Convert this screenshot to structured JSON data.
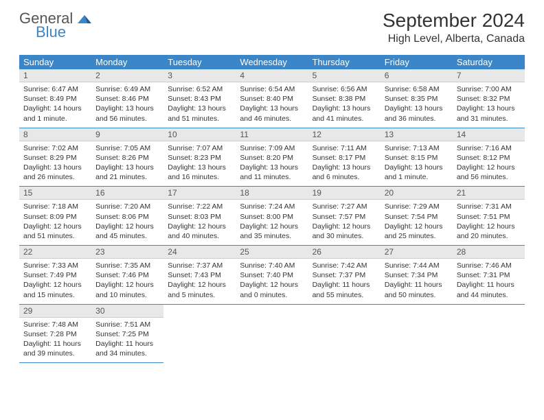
{
  "logo": {
    "word1": "General",
    "word2": "Blue"
  },
  "title": "September 2024",
  "location": "High Level, Alberta, Canada",
  "colors": {
    "header_bg": "#3a86c8",
    "header_text": "#ffffff",
    "daynum_bg": "#e8e8e8",
    "text": "#333333",
    "border": "#3a86c8"
  },
  "dayNames": [
    "Sunday",
    "Monday",
    "Tuesday",
    "Wednesday",
    "Thursday",
    "Friday",
    "Saturday"
  ],
  "weeks": [
    [
      {
        "d": "1",
        "sr": "Sunrise: 6:47 AM",
        "ss": "Sunset: 8:49 PM",
        "dl": "Daylight: 14 hours and 1 minute."
      },
      {
        "d": "2",
        "sr": "Sunrise: 6:49 AM",
        "ss": "Sunset: 8:46 PM",
        "dl": "Daylight: 13 hours and 56 minutes."
      },
      {
        "d": "3",
        "sr": "Sunrise: 6:52 AM",
        "ss": "Sunset: 8:43 PM",
        "dl": "Daylight: 13 hours and 51 minutes."
      },
      {
        "d": "4",
        "sr": "Sunrise: 6:54 AM",
        "ss": "Sunset: 8:40 PM",
        "dl": "Daylight: 13 hours and 46 minutes."
      },
      {
        "d": "5",
        "sr": "Sunrise: 6:56 AM",
        "ss": "Sunset: 8:38 PM",
        "dl": "Daylight: 13 hours and 41 minutes."
      },
      {
        "d": "6",
        "sr": "Sunrise: 6:58 AM",
        "ss": "Sunset: 8:35 PM",
        "dl": "Daylight: 13 hours and 36 minutes."
      },
      {
        "d": "7",
        "sr": "Sunrise: 7:00 AM",
        "ss": "Sunset: 8:32 PM",
        "dl": "Daylight: 13 hours and 31 minutes."
      }
    ],
    [
      {
        "d": "8",
        "sr": "Sunrise: 7:02 AM",
        "ss": "Sunset: 8:29 PM",
        "dl": "Daylight: 13 hours and 26 minutes."
      },
      {
        "d": "9",
        "sr": "Sunrise: 7:05 AM",
        "ss": "Sunset: 8:26 PM",
        "dl": "Daylight: 13 hours and 21 minutes."
      },
      {
        "d": "10",
        "sr": "Sunrise: 7:07 AM",
        "ss": "Sunset: 8:23 PM",
        "dl": "Daylight: 13 hours and 16 minutes."
      },
      {
        "d": "11",
        "sr": "Sunrise: 7:09 AM",
        "ss": "Sunset: 8:20 PM",
        "dl": "Daylight: 13 hours and 11 minutes."
      },
      {
        "d": "12",
        "sr": "Sunrise: 7:11 AM",
        "ss": "Sunset: 8:17 PM",
        "dl": "Daylight: 13 hours and 6 minutes."
      },
      {
        "d": "13",
        "sr": "Sunrise: 7:13 AM",
        "ss": "Sunset: 8:15 PM",
        "dl": "Daylight: 13 hours and 1 minute."
      },
      {
        "d": "14",
        "sr": "Sunrise: 7:16 AM",
        "ss": "Sunset: 8:12 PM",
        "dl": "Daylight: 12 hours and 56 minutes."
      }
    ],
    [
      {
        "d": "15",
        "sr": "Sunrise: 7:18 AM",
        "ss": "Sunset: 8:09 PM",
        "dl": "Daylight: 12 hours and 51 minutes."
      },
      {
        "d": "16",
        "sr": "Sunrise: 7:20 AM",
        "ss": "Sunset: 8:06 PM",
        "dl": "Daylight: 12 hours and 45 minutes."
      },
      {
        "d": "17",
        "sr": "Sunrise: 7:22 AM",
        "ss": "Sunset: 8:03 PM",
        "dl": "Daylight: 12 hours and 40 minutes."
      },
      {
        "d": "18",
        "sr": "Sunrise: 7:24 AM",
        "ss": "Sunset: 8:00 PM",
        "dl": "Daylight: 12 hours and 35 minutes."
      },
      {
        "d": "19",
        "sr": "Sunrise: 7:27 AM",
        "ss": "Sunset: 7:57 PM",
        "dl": "Daylight: 12 hours and 30 minutes."
      },
      {
        "d": "20",
        "sr": "Sunrise: 7:29 AM",
        "ss": "Sunset: 7:54 PM",
        "dl": "Daylight: 12 hours and 25 minutes."
      },
      {
        "d": "21",
        "sr": "Sunrise: 7:31 AM",
        "ss": "Sunset: 7:51 PM",
        "dl": "Daylight: 12 hours and 20 minutes."
      }
    ],
    [
      {
        "d": "22",
        "sr": "Sunrise: 7:33 AM",
        "ss": "Sunset: 7:49 PM",
        "dl": "Daylight: 12 hours and 15 minutes."
      },
      {
        "d": "23",
        "sr": "Sunrise: 7:35 AM",
        "ss": "Sunset: 7:46 PM",
        "dl": "Daylight: 12 hours and 10 minutes."
      },
      {
        "d": "24",
        "sr": "Sunrise: 7:37 AM",
        "ss": "Sunset: 7:43 PM",
        "dl": "Daylight: 12 hours and 5 minutes."
      },
      {
        "d": "25",
        "sr": "Sunrise: 7:40 AM",
        "ss": "Sunset: 7:40 PM",
        "dl": "Daylight: 12 hours and 0 minutes."
      },
      {
        "d": "26",
        "sr": "Sunrise: 7:42 AM",
        "ss": "Sunset: 7:37 PM",
        "dl": "Daylight: 11 hours and 55 minutes."
      },
      {
        "d": "27",
        "sr": "Sunrise: 7:44 AM",
        "ss": "Sunset: 7:34 PM",
        "dl": "Daylight: 11 hours and 50 minutes."
      },
      {
        "d": "28",
        "sr": "Sunrise: 7:46 AM",
        "ss": "Sunset: 7:31 PM",
        "dl": "Daylight: 11 hours and 44 minutes."
      }
    ],
    [
      {
        "d": "29",
        "sr": "Sunrise: 7:48 AM",
        "ss": "Sunset: 7:28 PM",
        "dl": "Daylight: 11 hours and 39 minutes."
      },
      {
        "d": "30",
        "sr": "Sunrise: 7:51 AM",
        "ss": "Sunset: 7:25 PM",
        "dl": "Daylight: 11 hours and 34 minutes."
      },
      null,
      null,
      null,
      null,
      null
    ]
  ]
}
